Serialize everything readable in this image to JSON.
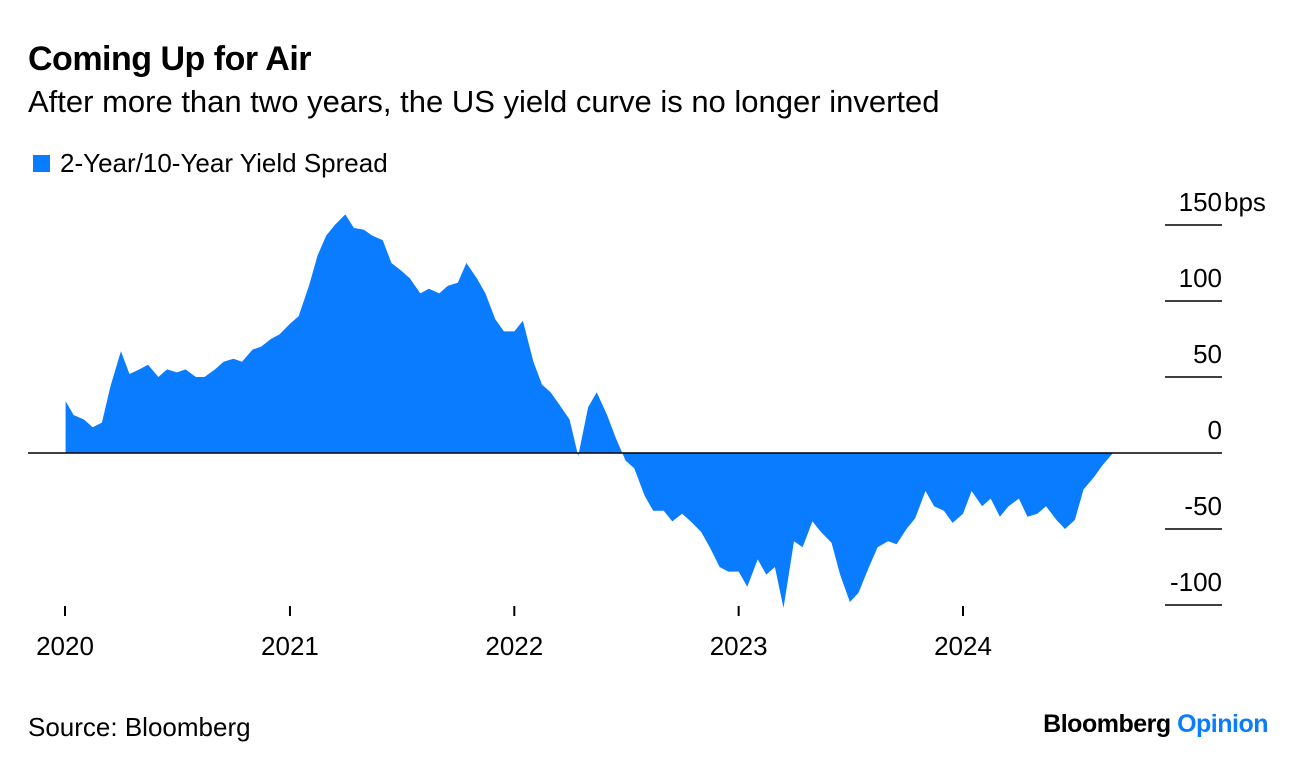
{
  "title": "Coming Up for Air",
  "subtitle": "After more than two years, the US yield curve is no longer inverted",
  "source": "Source: Bloomberg",
  "brand": {
    "name": "Bloomberg",
    "product": "Opinion"
  },
  "colors": {
    "area": "#0a7cff",
    "axis": "#000000",
    "brand_accent": "#0a7cff"
  },
  "chart_data": {
    "type": "area",
    "legend": [
      {
        "name": "2-Year/10-Year Yield Spread",
        "color": "#0a7cff"
      }
    ],
    "legend_position": "top-left",
    "y_unit": "bps",
    "ylim": [
      -100,
      150
    ],
    "yticks": [
      150,
      100,
      50,
      0,
      -50,
      -100
    ],
    "ytick_labels": [
      "150",
      "100",
      "50",
      "0",
      "-50",
      "-100"
    ],
    "y_axis_side": "right",
    "xlim": [
      "2020-01-01",
      "2024-12-31"
    ],
    "xticks": [
      "2020-01-01",
      "2021-01-01",
      "2022-01-01",
      "2023-01-01",
      "2024-01-01"
    ],
    "xtick_labels": [
      "2020",
      "2021",
      "2022",
      "2023",
      "2024"
    ],
    "grid": false,
    "series": [
      {
        "name": "2-Year/10-Year Yield Spread",
        "x": [
          "2020-01-02",
          "2020-01-15",
          "2020-02-01",
          "2020-02-15",
          "2020-03-01",
          "2020-03-15",
          "2020-04-01",
          "2020-04-15",
          "2020-05-01",
          "2020-05-15",
          "2020-06-01",
          "2020-06-15",
          "2020-07-01",
          "2020-07-15",
          "2020-08-01",
          "2020-08-15",
          "2020-09-01",
          "2020-09-15",
          "2020-10-01",
          "2020-10-15",
          "2020-11-01",
          "2020-11-15",
          "2020-12-01",
          "2020-12-15",
          "2021-01-01",
          "2021-01-15",
          "2021-02-01",
          "2021-02-15",
          "2021-03-01",
          "2021-03-15",
          "2021-04-01",
          "2021-04-15",
          "2021-05-01",
          "2021-05-15",
          "2021-06-01",
          "2021-06-15",
          "2021-07-01",
          "2021-07-15",
          "2021-08-01",
          "2021-08-15",
          "2021-09-01",
          "2021-09-15",
          "2021-10-01",
          "2021-10-15",
          "2021-11-01",
          "2021-11-15",
          "2021-12-01",
          "2021-12-15",
          "2022-01-01",
          "2022-01-15",
          "2022-02-01",
          "2022-02-15",
          "2022-03-01",
          "2022-03-15",
          "2022-04-01",
          "2022-04-15",
          "2022-05-01",
          "2022-05-15",
          "2022-06-01",
          "2022-06-15",
          "2022-07-01",
          "2022-07-15",
          "2022-08-01",
          "2022-08-15",
          "2022-09-01",
          "2022-09-15",
          "2022-10-01",
          "2022-10-15",
          "2022-11-01",
          "2022-11-15",
          "2022-12-01",
          "2022-12-15",
          "2023-01-01",
          "2023-01-15",
          "2023-02-01",
          "2023-02-15",
          "2023-03-01",
          "2023-03-15",
          "2023-04-01",
          "2023-04-15",
          "2023-05-01",
          "2023-05-15",
          "2023-06-01",
          "2023-06-15",
          "2023-07-01",
          "2023-07-15",
          "2023-08-01",
          "2023-08-15",
          "2023-09-01",
          "2023-09-15",
          "2023-10-01",
          "2023-10-15",
          "2023-11-01",
          "2023-11-15",
          "2023-12-01",
          "2023-12-15",
          "2024-01-01",
          "2024-01-15",
          "2024-02-01",
          "2024-02-15",
          "2024-03-01",
          "2024-03-15",
          "2024-04-01",
          "2024-04-15",
          "2024-05-01",
          "2024-05-15",
          "2024-06-01",
          "2024-06-15",
          "2024-07-01",
          "2024-07-15",
          "2024-08-01",
          "2024-08-15",
          "2024-09-01"
        ],
        "values": [
          34,
          25,
          22,
          17,
          20,
          44,
          67,
          52,
          55,
          58,
          50,
          55,
          53,
          55,
          50,
          50,
          55,
          60,
          62,
          60,
          68,
          70,
          75,
          78,
          85,
          90,
          110,
          130,
          143,
          150,
          157,
          148,
          147,
          143,
          140,
          125,
          120,
          115,
          105,
          108,
          105,
          110,
          112,
          125,
          115,
          105,
          88,
          80,
          80,
          87,
          60,
          45,
          40,
          32,
          22,
          -2,
          30,
          40,
          25,
          10,
          -5,
          -10,
          -28,
          -38,
          -38,
          -45,
          -40,
          -45,
          -52,
          -62,
          -75,
          -78,
          -78,
          -88,
          -70,
          -80,
          -75,
          -102,
          -58,
          -62,
          -45,
          -52,
          -59,
          -80,
          -98,
          -92,
          -75,
          -62,
          -58,
          -60,
          -50,
          -43,
          -25,
          -35,
          -38,
          -46,
          -40,
          -25,
          -35,
          -30,
          -42,
          -35,
          -30,
          -42,
          -40,
          -35,
          -44,
          -50,
          -44,
          -24,
          -16,
          -8,
          0
        ]
      }
    ]
  }
}
